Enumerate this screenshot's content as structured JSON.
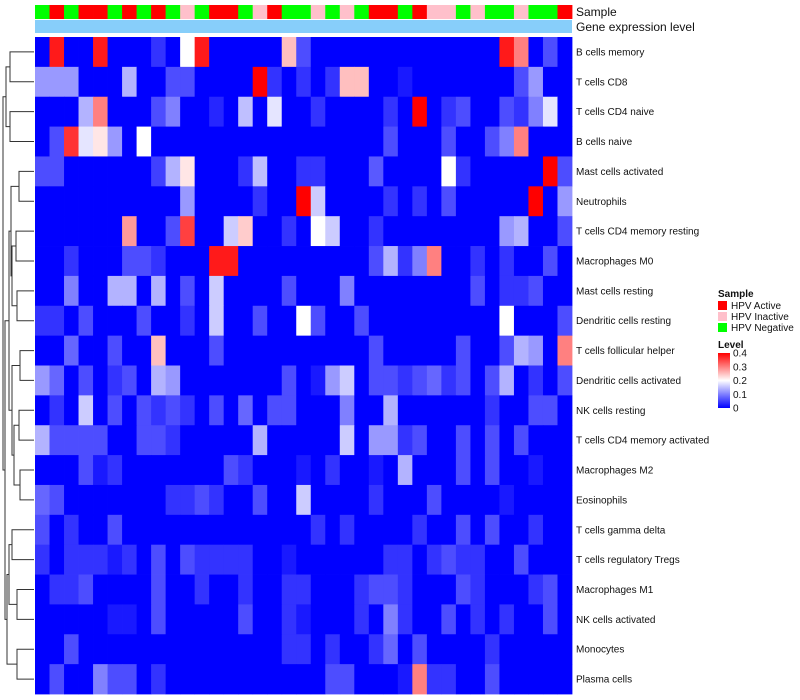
{
  "chart_data": {
    "type": "heatmap",
    "title": "",
    "annotation_tracks": [
      {
        "name": "Sample",
        "label": "Sample"
      },
      {
        "name": "Gene expression level",
        "label": "Gene expression level"
      }
    ],
    "sample_groups": [
      {
        "name": "HPV Active",
        "label": "HPV Active",
        "color": "#ff0000"
      },
      {
        "name": "HPV Inactive",
        "label": "HPV Inactive",
        "color": "#ffc0cb"
      },
      {
        "name": "HPV Negative",
        "label": "HPV Negative",
        "color": "#00ff00"
      }
    ],
    "expression_track_color": "#87cefa",
    "column_groups": [
      "HPV Negative",
      "HPV Active",
      "HPV Negative",
      "HPV Active",
      "HPV Active",
      "HPV Negative",
      "HPV Active",
      "HPV Negative",
      "HPV Active",
      "HPV Negative",
      "HPV Inactive",
      "HPV Negative",
      "HPV Active",
      "HPV Active",
      "HPV Negative",
      "HPV Inactive",
      "HPV Active",
      "HPV Negative",
      "HPV Negative",
      "HPV Inactive",
      "HPV Negative",
      "HPV Inactive",
      "HPV Negative",
      "HPV Active",
      "HPV Active",
      "HPV Negative",
      "HPV Active",
      "HPV Inactive",
      "HPV Inactive",
      "HPV Negative",
      "HPV Inactive",
      "HPV Negative",
      "HPV Negative",
      "HPV Inactive",
      "HPV Negative",
      "HPV Negative",
      "HPV Active"
    ],
    "rows": [
      "B cells memory",
      "T cells CD8",
      "T cells CD4 naive",
      "B cells naive",
      "Mast cells activated",
      "Neutrophils",
      "T cells CD4 memory resting",
      "Macrophages M0",
      "Mast cells resting",
      "Dendritic cells resting",
      "T cells follicular helper",
      "Dendritic cells activated",
      "NK cells resting",
      "T cells CD4 memory activated",
      "Macrophages M2",
      "Eosinophils",
      "T cells gamma delta",
      "T cells regulatory  Tregs",
      "Macrophages M1",
      "NK cells activated",
      "Monocytes",
      "Plasma cells"
    ],
    "values": [
      [
        0,
        0.38,
        0,
        0,
        0.38,
        0,
        0,
        0,
        0.04,
        0,
        0.2,
        0.38,
        0,
        0,
        0,
        0,
        0,
        0.25,
        0.06,
        0,
        0,
        0,
        0,
        0,
        0,
        0,
        0,
        0,
        0,
        0,
        0,
        0,
        0.38,
        0.3,
        0,
        0.06,
        0
      ],
      [
        0.12,
        0.12,
        0.12,
        0,
        0,
        0,
        0.14,
        0,
        0,
        0.06,
        0.06,
        0,
        0,
        0,
        0,
        0.42,
        0.04,
        0,
        0.04,
        0,
        0.04,
        0.25,
        0.25,
        0,
        0,
        0.02,
        0,
        0,
        0,
        0,
        0,
        0,
        0,
        0.06,
        0.12,
        0,
        0
      ],
      [
        0,
        0,
        0,
        0.14,
        0.3,
        0,
        0,
        0,
        0.06,
        0.1,
        0,
        0,
        0.03,
        0,
        0.15,
        0,
        0.18,
        0,
        0,
        0.04,
        0,
        0,
        0,
        0,
        0.04,
        0,
        0.4,
        0,
        0.04,
        0.06,
        0,
        0,
        0.06,
        0.04,
        0.1,
        0.18,
        0
      ],
      [
        0,
        0.06,
        0.36,
        0.18,
        0.22,
        0.12,
        0,
        0.2,
        0,
        0,
        0,
        0,
        0,
        0,
        0,
        0,
        0,
        0,
        0,
        0,
        0,
        0,
        0,
        0,
        0.06,
        0,
        0,
        0,
        0.06,
        0,
        0,
        0.06,
        0.1,
        0.3,
        0,
        0,
        0
      ],
      [
        0.06,
        0.06,
        0,
        0,
        0,
        0,
        0,
        0,
        0.05,
        0.14,
        0.22,
        0,
        0,
        0,
        0.04,
        0.15,
        0,
        0,
        0.04,
        0.04,
        0,
        0,
        0,
        0.07,
        0,
        0,
        0,
        0,
        0.2,
        0.04,
        0,
        0,
        0,
        0,
        0,
        0.4,
        0.06
      ],
      [
        0,
        0,
        0,
        0,
        0,
        0,
        0,
        0,
        0,
        0,
        0.12,
        0,
        0,
        0,
        0,
        0.04,
        0,
        0,
        0.42,
        0.16,
        0,
        0,
        0,
        0,
        0.04,
        0,
        0.04,
        0,
        0.06,
        0,
        0,
        0,
        0,
        0,
        0.42,
        0,
        0.12
      ],
      [
        0,
        0,
        0,
        0,
        0,
        0,
        0.28,
        0,
        0,
        0.06,
        0.35,
        0,
        0,
        0.16,
        0.24,
        0,
        0,
        0.04,
        0,
        0.2,
        0.16,
        0,
        0,
        0.04,
        0,
        0,
        0,
        0,
        0,
        0,
        0,
        0,
        0.12,
        0.14,
        0,
        0,
        0.06
      ],
      [
        0,
        0,
        0.04,
        0,
        0,
        0,
        0.06,
        0.06,
        0.04,
        0,
        0,
        0,
        0.38,
        0.38,
        0,
        0,
        0,
        0,
        0,
        0,
        0,
        0,
        0,
        0.06,
        0.14,
        0.04,
        0.1,
        0.3,
        0,
        0,
        0.04,
        0,
        0.04,
        0,
        0,
        0.06,
        0
      ],
      [
        0,
        0,
        0.1,
        0,
        0,
        0.14,
        0.14,
        0,
        0.14,
        0,
        0.06,
        0,
        0.16,
        0,
        0,
        0,
        0,
        0.06,
        0,
        0,
        0,
        0.1,
        0,
        0,
        0,
        0,
        0,
        0,
        0,
        0,
        0.06,
        0,
        0.04,
        0.04,
        0.06,
        0,
        0
      ],
      [
        0.04,
        0.04,
        0,
        0.06,
        0,
        0,
        0,
        0.06,
        0,
        0,
        0.04,
        0,
        0.16,
        0,
        0,
        0.06,
        0,
        0,
        0.2,
        0.06,
        0,
        0,
        0.06,
        0,
        0,
        0,
        0,
        0,
        0,
        0,
        0,
        0,
        0.2,
        0,
        0,
        0,
        0.06
      ],
      [
        0,
        0,
        0.08,
        0,
        0,
        0.06,
        0,
        0,
        0.25,
        0,
        0,
        0,
        0.06,
        0,
        0,
        0,
        0,
        0,
        0,
        0,
        0,
        0,
        0,
        0.06,
        0,
        0,
        0,
        0,
        0,
        0.06,
        0,
        0,
        0.06,
        0.14,
        0.12,
        0,
        0.3
      ],
      [
        0.12,
        0.08,
        0,
        0.06,
        0,
        0.04,
        0.06,
        0,
        0.14,
        0.12,
        0,
        0,
        0,
        0,
        0,
        0,
        0,
        0.06,
        0,
        0.02,
        0.12,
        0.16,
        0,
        0.06,
        0.06,
        0.04,
        0.06,
        0.08,
        0.04,
        0.06,
        0,
        0.06,
        0.14,
        0,
        0.04,
        0,
        0.06
      ],
      [
        0,
        0.04,
        0,
        0.16,
        0,
        0.06,
        0,
        0.06,
        0.04,
        0.06,
        0.04,
        0,
        0.06,
        0,
        0.08,
        0,
        0.06,
        0.06,
        0,
        0,
        0,
        0.1,
        0,
        0,
        0.14,
        0,
        0,
        0,
        0,
        0,
        0,
        0.04,
        0,
        0,
        0.06,
        0.06,
        0
      ],
      [
        0.14,
        0.06,
        0.06,
        0.06,
        0.06,
        0,
        0,
        0.06,
        0.06,
        0.04,
        0,
        0,
        0,
        0,
        0,
        0.14,
        0,
        0,
        0,
        0,
        0,
        0.16,
        0,
        0.12,
        0.12,
        0.04,
        0.06,
        0,
        0,
        0.06,
        0,
        0.06,
        0,
        0.06,
        0,
        0,
        0
      ],
      [
        0,
        0,
        0,
        0.06,
        0.02,
        0.04,
        0,
        0,
        0,
        0,
        0,
        0,
        0,
        0.06,
        0.04,
        0,
        0,
        0,
        0.02,
        0,
        0.04,
        0,
        0,
        0.02,
        0,
        0.14,
        0,
        0,
        0,
        0.06,
        0,
        0.06,
        0,
        0,
        0.02,
        0,
        0
      ],
      [
        0.08,
        0.06,
        0,
        0,
        0,
        0,
        0,
        0,
        0,
        0.04,
        0.04,
        0.06,
        0.04,
        0,
        0,
        0.06,
        0,
        0,
        0.16,
        0,
        0,
        0,
        0,
        0.04,
        0,
        0,
        0,
        0.06,
        0,
        0,
        0,
        0,
        0.02,
        0,
        0,
        0,
        0
      ],
      [
        0.06,
        0,
        0.04,
        0,
        0,
        0.06,
        0,
        0,
        0,
        0,
        0,
        0,
        0,
        0,
        0,
        0,
        0,
        0,
        0,
        0.04,
        0,
        0.04,
        0,
        0,
        0,
        0,
        0.04,
        0,
        0,
        0.06,
        0,
        0.06,
        0,
        0,
        0.04,
        0,
        0
      ],
      [
        0.04,
        0,
        0.04,
        0.04,
        0.04,
        0.02,
        0.04,
        0,
        0.06,
        0,
        0.06,
        0.04,
        0.04,
        0.04,
        0.04,
        0,
        0,
        0.02,
        0,
        0,
        0,
        0,
        0,
        0,
        0.04,
        0.04,
        0,
        0.04,
        0.06,
        0.04,
        0.04,
        0,
        0,
        0.06,
        0,
        0,
        0
      ],
      [
        0,
        0.04,
        0.04,
        0.06,
        0,
        0,
        0,
        0,
        0.06,
        0,
        0,
        0.04,
        0,
        0,
        0.04,
        0,
        0,
        0.04,
        0.04,
        0,
        0,
        0,
        0.04,
        0.06,
        0.06,
        0.04,
        0,
        0,
        0,
        0.06,
        0.04,
        0,
        0,
        0,
        0.04,
        0.06,
        0
      ],
      [
        0,
        0,
        0,
        0,
        0,
        0.02,
        0.02,
        0,
        0.06,
        0,
        0,
        0,
        0,
        0,
        0.06,
        0,
        0,
        0.04,
        0.02,
        0,
        0,
        0,
        0.04,
        0,
        0.1,
        0.04,
        0,
        0,
        0.06,
        0,
        0.04,
        0,
        0.04,
        0,
        0,
        0.06,
        0
      ],
      [
        0,
        0,
        0.06,
        0,
        0,
        0,
        0,
        0,
        0,
        0,
        0,
        0,
        0,
        0,
        0,
        0,
        0,
        0.04,
        0.04,
        0,
        0.04,
        0,
        0,
        0.04,
        0.08,
        0,
        0.06,
        0,
        0,
        0,
        0,
        0.04,
        0,
        0,
        0,
        0,
        0
      ],
      [
        0,
        0.06,
        0,
        0,
        0.1,
        0.06,
        0.06,
        0,
        0.04,
        0,
        0,
        0,
        0,
        0,
        0,
        0,
        0,
        0,
        0,
        0,
        0.06,
        0.06,
        0,
        0,
        0,
        0.02,
        0.3,
        0.04,
        0.04,
        0,
        0,
        0.06,
        0,
        0,
        0,
        0,
        0
      ]
    ],
    "color_scale": {
      "title": "Level",
      "range": [
        0,
        0.4
      ],
      "ticks": [
        0,
        0.1,
        0.2,
        0.3,
        0.4
      ],
      "tick_labels": [
        "0",
        "0.1",
        "0.2",
        "0.3",
        "0.4"
      ],
      "low": "#0000ff",
      "mid": "#ffffff",
      "high": "#ff0000"
    },
    "legend_position": "right",
    "row_dendrogram": "left"
  }
}
